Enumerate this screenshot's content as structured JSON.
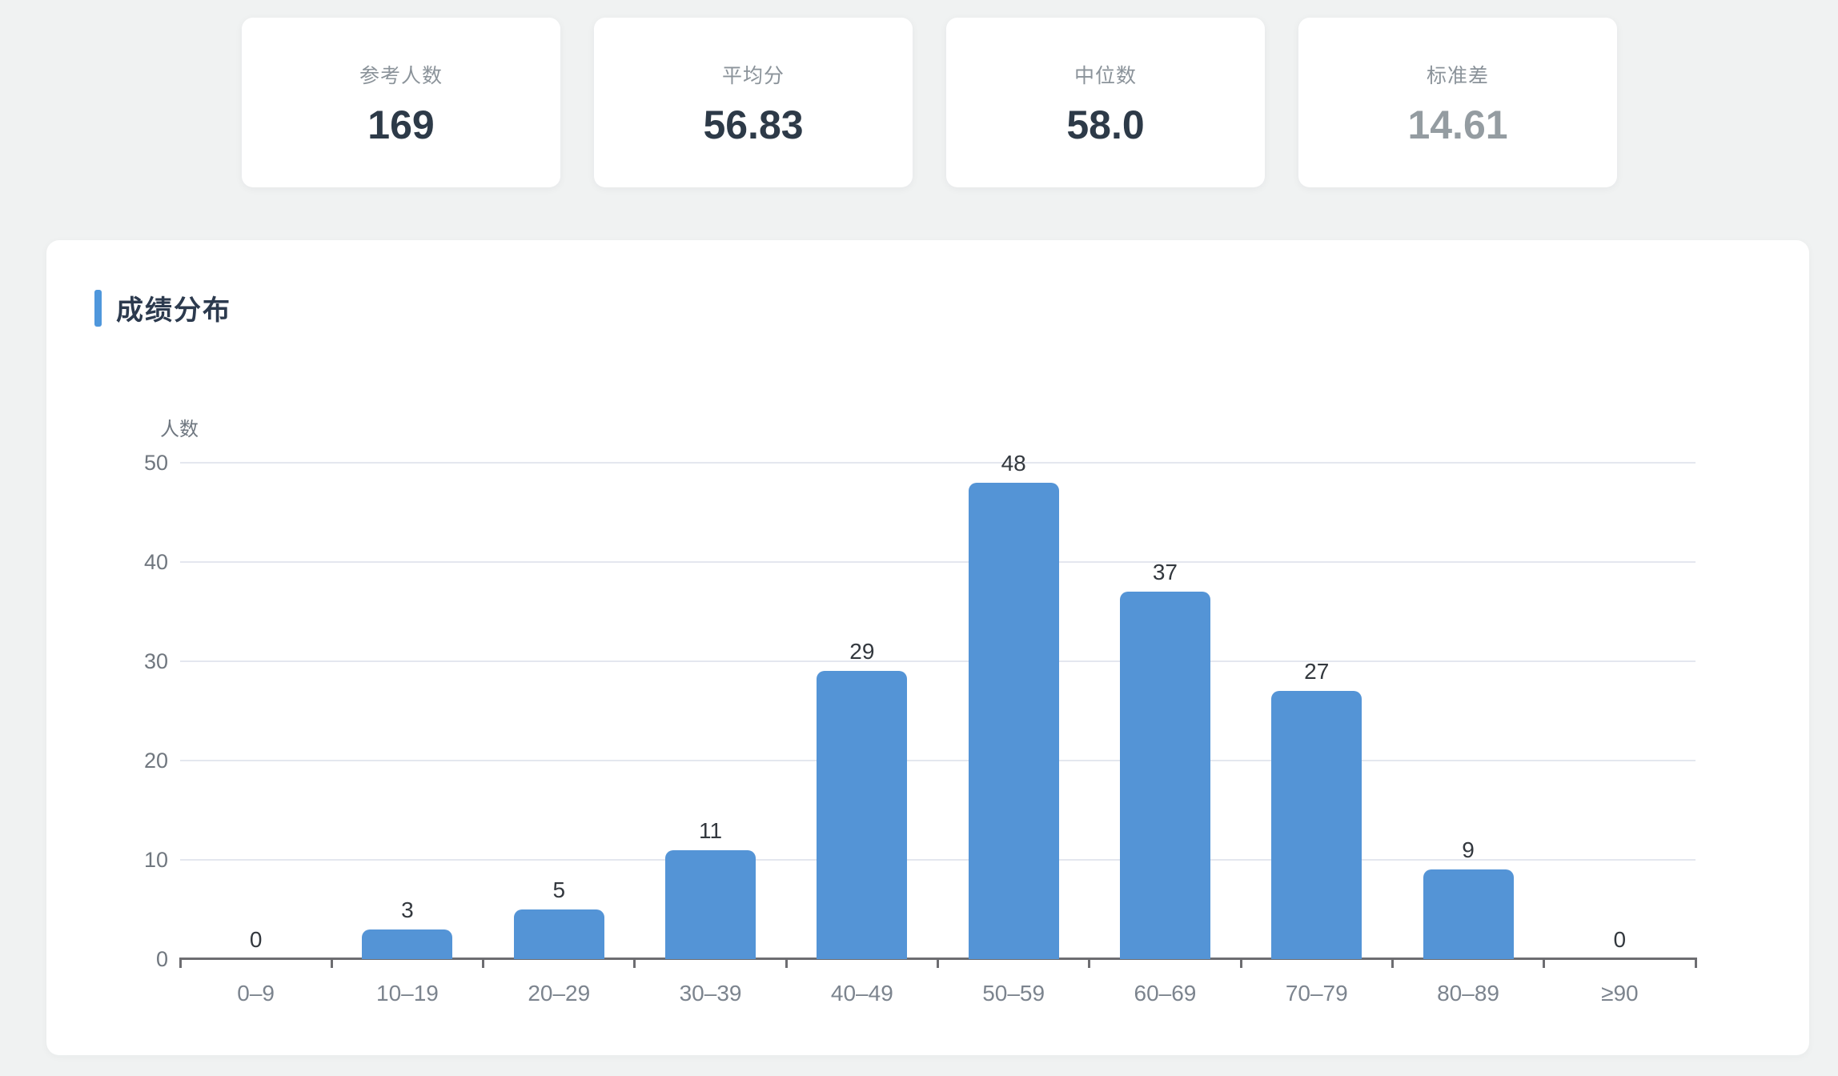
{
  "stats": {
    "cards": [
      {
        "label": "参考人数",
        "value": "169",
        "muted": false
      },
      {
        "label": "平均分",
        "value": "56.83",
        "muted": false
      },
      {
        "label": "中位数",
        "value": "58.0",
        "muted": false
      },
      {
        "label": "标准差",
        "value": "14.61",
        "muted": true
      }
    ]
  },
  "panel": {
    "title": "成绩分布"
  },
  "chart_data": {
    "type": "bar",
    "title": "成绩分布",
    "xlabel": "",
    "ylabel": "人数",
    "categories": [
      "0–9",
      "10–19",
      "20–29",
      "30–39",
      "40–49",
      "50–59",
      "60–69",
      "70–79",
      "80–89",
      "≥90"
    ],
    "values": [
      0,
      3,
      5,
      11,
      29,
      48,
      37,
      27,
      9,
      0
    ],
    "ylim": [
      0,
      50
    ],
    "yticks": [
      0,
      10,
      20,
      30,
      40,
      50
    ],
    "grid": true,
    "legend": false,
    "value_labels": true,
    "bar_color": "#5494d6"
  },
  "colors": {
    "accent": "#4f97dc",
    "bar": "#5494d6",
    "value_dark": "#2d3a48",
    "value_muted": "#949ca1",
    "background": "#f0f2f2",
    "gridline": "#e4e7ef",
    "axis": "#6d6d71"
  }
}
